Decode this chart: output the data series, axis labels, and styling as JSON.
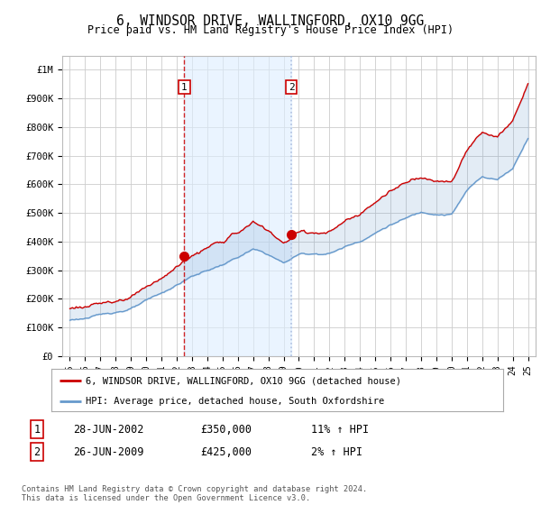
{
  "title": "6, WINDSOR DRIVE, WALLINGFORD, OX10 9GG",
  "subtitle": "Price paid vs. HM Land Registry's House Price Index (HPI)",
  "legend_property": "6, WINDSOR DRIVE, WALLINGFORD, OX10 9GG (detached house)",
  "legend_hpi": "HPI: Average price, detached house, South Oxfordshire",
  "footnote": "Contains HM Land Registry data © Crown copyright and database right 2024.\nThis data is licensed under the Open Government Licence v3.0.",
  "sale1_label": "1",
  "sale1_date": "28-JUN-2002",
  "sale1_price": "£350,000",
  "sale1_hpi": "11% ↑ HPI",
  "sale2_label": "2",
  "sale2_date": "26-JUN-2009",
  "sale2_price": "£425,000",
  "sale2_hpi": "2% ↑ HPI",
  "sale1_x": 2002.5,
  "sale1_y": 350000,
  "sale2_x": 2009.5,
  "sale2_y": 425000,
  "xlim": [
    1994.5,
    2025.5
  ],
  "ylim": [
    0,
    1050000
  ],
  "yticks": [
    0,
    100000,
    200000,
    300000,
    400000,
    500000,
    600000,
    700000,
    800000,
    900000,
    1000000
  ],
  "ytick_labels": [
    "£0",
    "£100K",
    "£200K",
    "£300K",
    "£400K",
    "£500K",
    "£600K",
    "£700K",
    "£800K",
    "£900K",
    "£1M"
  ],
  "xticks": [
    1995,
    1996,
    1997,
    1998,
    1999,
    2000,
    2001,
    2002,
    2003,
    2004,
    2005,
    2006,
    2007,
    2008,
    2009,
    2010,
    2011,
    2012,
    2013,
    2014,
    2015,
    2016,
    2017,
    2018,
    2019,
    2020,
    2021,
    2022,
    2023,
    2024,
    2025
  ],
  "xtick_labels": [
    "95",
    "96",
    "97",
    "98",
    "99",
    "00",
    "01",
    "02",
    "03",
    "04",
    "05",
    "06",
    "07",
    "08",
    "09",
    "10",
    "11",
    "12",
    "13",
    "14",
    "15",
    "16",
    "17",
    "18",
    "19",
    "20",
    "21",
    "22",
    "23",
    "24",
    "25"
  ],
  "property_color": "#cc0000",
  "hpi_color": "#6699cc",
  "span_color": "#ddeeff",
  "marker_color": "#cc0000",
  "vline1_color": "#cc0000",
  "vline2_color": "#aabbdd",
  "grid_color": "#cccccc",
  "bg_color": "#ffffff"
}
